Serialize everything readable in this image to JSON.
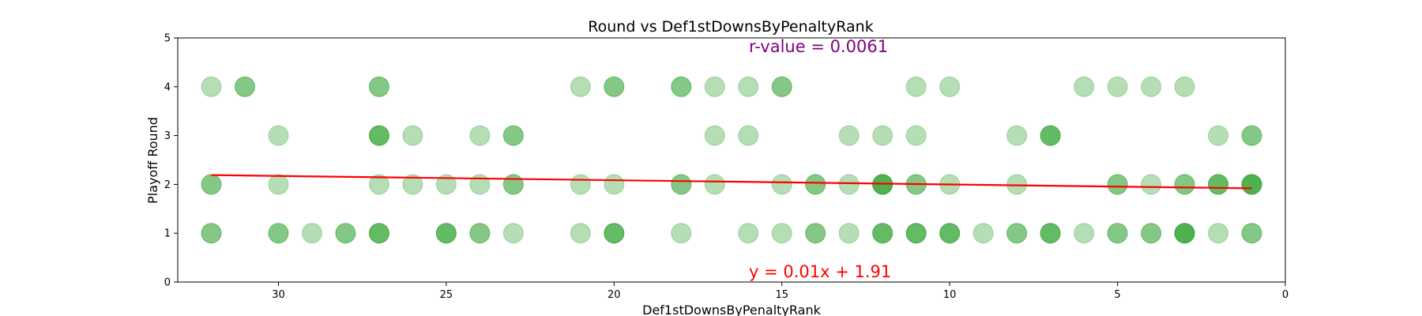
{
  "chart_data": {
    "type": "scatter",
    "title": "Round vs Def1stDownsByPenaltyRank",
    "xlabel": "Def1stDownsByPenaltyRank",
    "ylabel": "Playoff Round",
    "xlim": [
      33,
      0
    ],
    "ylim": [
      0,
      5
    ],
    "x_ticks": [
      30,
      25,
      20,
      15,
      10,
      5,
      0
    ],
    "y_ticks": [
      0,
      1,
      2,
      3,
      4,
      5
    ],
    "grid": false,
    "point_color": "#2ca02c",
    "point_alpha": 0.35,
    "points": [
      {
        "x": 32,
        "y": 4
      },
      {
        "x": 31,
        "y": 4
      },
      {
        "x": 31,
        "y": 4
      },
      {
        "x": 27,
        "y": 4
      },
      {
        "x": 27,
        "y": 4
      },
      {
        "x": 21,
        "y": 4
      },
      {
        "x": 20,
        "y": 4
      },
      {
        "x": 20,
        "y": 4
      },
      {
        "x": 18,
        "y": 4
      },
      {
        "x": 18,
        "y": 4
      },
      {
        "x": 17,
        "y": 4
      },
      {
        "x": 16,
        "y": 4
      },
      {
        "x": 15,
        "y": 4
      },
      {
        "x": 15,
        "y": 4
      },
      {
        "x": 11,
        "y": 4
      },
      {
        "x": 10,
        "y": 4
      },
      {
        "x": 6,
        "y": 4
      },
      {
        "x": 5,
        "y": 4
      },
      {
        "x": 4,
        "y": 4
      },
      {
        "x": 3,
        "y": 4
      },
      {
        "x": 30,
        "y": 3
      },
      {
        "x": 27,
        "y": 3
      },
      {
        "x": 27,
        "y": 3
      },
      {
        "x": 27,
        "y": 3
      },
      {
        "x": 26,
        "y": 3
      },
      {
        "x": 24,
        "y": 3
      },
      {
        "x": 23,
        "y": 3
      },
      {
        "x": 23,
        "y": 3
      },
      {
        "x": 17,
        "y": 3
      },
      {
        "x": 16,
        "y": 3
      },
      {
        "x": 13,
        "y": 3
      },
      {
        "x": 12,
        "y": 3
      },
      {
        "x": 11,
        "y": 3
      },
      {
        "x": 8,
        "y": 3
      },
      {
        "x": 7,
        "y": 3
      },
      {
        "x": 7,
        "y": 3
      },
      {
        "x": 7,
        "y": 3
      },
      {
        "x": 2,
        "y": 3
      },
      {
        "x": 1,
        "y": 3
      },
      {
        "x": 1,
        "y": 3
      },
      {
        "x": 32,
        "y": 2
      },
      {
        "x": 32,
        "y": 2
      },
      {
        "x": 30,
        "y": 2
      },
      {
        "x": 27,
        "y": 2
      },
      {
        "x": 26,
        "y": 2
      },
      {
        "x": 25,
        "y": 2
      },
      {
        "x": 24,
        "y": 2
      },
      {
        "x": 23,
        "y": 2
      },
      {
        "x": 23,
        "y": 2
      },
      {
        "x": 21,
        "y": 2
      },
      {
        "x": 20,
        "y": 2
      },
      {
        "x": 18,
        "y": 2
      },
      {
        "x": 18,
        "y": 2
      },
      {
        "x": 17,
        "y": 2
      },
      {
        "x": 15,
        "y": 2
      },
      {
        "x": 14,
        "y": 2
      },
      {
        "x": 14,
        "y": 2
      },
      {
        "x": 13,
        "y": 2
      },
      {
        "x": 12,
        "y": 2
      },
      {
        "x": 12,
        "y": 2
      },
      {
        "x": 12,
        "y": 2
      },
      {
        "x": 12,
        "y": 2
      },
      {
        "x": 11,
        "y": 2
      },
      {
        "x": 11,
        "y": 2
      },
      {
        "x": 10,
        "y": 2
      },
      {
        "x": 8,
        "y": 2
      },
      {
        "x": 5,
        "y": 2
      },
      {
        "x": 5,
        "y": 2
      },
      {
        "x": 4,
        "y": 2
      },
      {
        "x": 3,
        "y": 2
      },
      {
        "x": 3,
        "y": 2
      },
      {
        "x": 2,
        "y": 2
      },
      {
        "x": 2,
        "y": 2
      },
      {
        "x": 2,
        "y": 2
      },
      {
        "x": 1,
        "y": 2
      },
      {
        "x": 1,
        "y": 2
      },
      {
        "x": 1,
        "y": 2
      },
      {
        "x": 1,
        "y": 2
      },
      {
        "x": 32,
        "y": 1
      },
      {
        "x": 32,
        "y": 1
      },
      {
        "x": 30,
        "y": 1
      },
      {
        "x": 30,
        "y": 1
      },
      {
        "x": 29,
        "y": 1
      },
      {
        "x": 28,
        "y": 1
      },
      {
        "x": 28,
        "y": 1
      },
      {
        "x": 27,
        "y": 1
      },
      {
        "x": 27,
        "y": 1
      },
      {
        "x": 27,
        "y": 1
      },
      {
        "x": 25,
        "y": 1
      },
      {
        "x": 25,
        "y": 1
      },
      {
        "x": 25,
        "y": 1
      },
      {
        "x": 24,
        "y": 1
      },
      {
        "x": 24,
        "y": 1
      },
      {
        "x": 23,
        "y": 1
      },
      {
        "x": 21,
        "y": 1
      },
      {
        "x": 20,
        "y": 1
      },
      {
        "x": 20,
        "y": 1
      },
      {
        "x": 20,
        "y": 1
      },
      {
        "x": 18,
        "y": 1
      },
      {
        "x": 16,
        "y": 1
      },
      {
        "x": 15,
        "y": 1
      },
      {
        "x": 14,
        "y": 1
      },
      {
        "x": 14,
        "y": 1
      },
      {
        "x": 13,
        "y": 1
      },
      {
        "x": 12,
        "y": 1
      },
      {
        "x": 12,
        "y": 1
      },
      {
        "x": 12,
        "y": 1
      },
      {
        "x": 11,
        "y": 1
      },
      {
        "x": 11,
        "y": 1
      },
      {
        "x": 11,
        "y": 1
      },
      {
        "x": 10,
        "y": 1
      },
      {
        "x": 10,
        "y": 1
      },
      {
        "x": 10,
        "y": 1
      },
      {
        "x": 9,
        "y": 1
      },
      {
        "x": 8,
        "y": 1
      },
      {
        "x": 8,
        "y": 1
      },
      {
        "x": 7,
        "y": 1
      },
      {
        "x": 7,
        "y": 1
      },
      {
        "x": 7,
        "y": 1
      },
      {
        "x": 6,
        "y": 1
      },
      {
        "x": 5,
        "y": 1
      },
      {
        "x": 5,
        "y": 1
      },
      {
        "x": 4,
        "y": 1
      },
      {
        "x": 4,
        "y": 1
      },
      {
        "x": 3,
        "y": 1
      },
      {
        "x": 3,
        "y": 1
      },
      {
        "x": 3,
        "y": 1
      },
      {
        "x": 3,
        "y": 1
      },
      {
        "x": 2,
        "y": 1
      },
      {
        "x": 1,
        "y": 1
      },
      {
        "x": 1,
        "y": 1
      }
    ],
    "regression": {
      "x_start": 32,
      "y_start": 2.19,
      "x_end": 1,
      "y_end": 1.92,
      "color": "#ff0000"
    },
    "annotations": {
      "r_value": "r-value = 0.0061",
      "r_value_color": "#800080",
      "equation": "y = 0.01x + 1.91",
      "equation_color": "#ff0000"
    }
  }
}
